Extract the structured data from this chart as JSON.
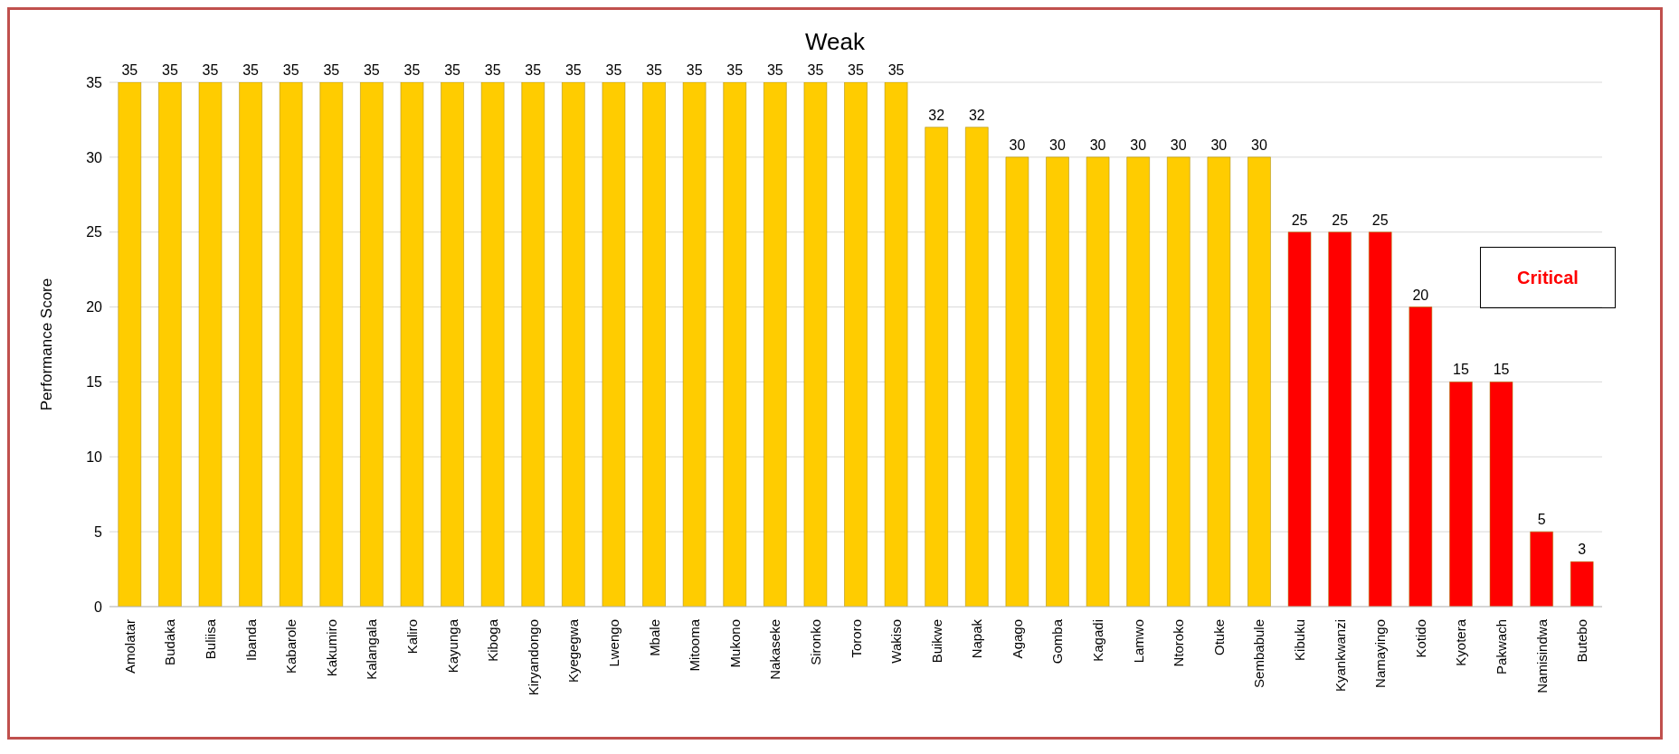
{
  "chart_data": {
    "type": "bar",
    "title": "Weak",
    "ylabel": "Performance Score",
    "categories": [
      "Amolatar",
      "Budaka",
      "Buliisa",
      "Ibanda",
      "Kabarole",
      "Kakumiro",
      "Kalangala",
      "Kaliro",
      "Kayunga",
      "Kiboga",
      "Kiryandongo",
      "Kyegegwa",
      "Lwengo",
      "Mbale",
      "Mitooma",
      "Mukono",
      "Nakaseke",
      "Sironko",
      "Tororo",
      "Wakiso",
      "Buikwe",
      "Napak",
      "Agago",
      "Gomba",
      "Kagadi",
      "Lamwo",
      "Ntoroko",
      "Otuke",
      "Sembabule",
      "Kibuku",
      "Kyankwanzi",
      "Namayingo",
      "Kotido",
      "Kyotera",
      "Pakwach",
      "Namisindwa",
      "Butebo"
    ],
    "values": [
      35,
      35,
      35,
      35,
      35,
      35,
      35,
      35,
      35,
      35,
      35,
      35,
      35,
      35,
      35,
      35,
      35,
      35,
      35,
      35,
      32,
      32,
      30,
      30,
      30,
      30,
      30,
      30,
      30,
      25,
      25,
      25,
      20,
      15,
      15,
      5,
      3
    ],
    "colors": [
      "#ffcc00",
      "#ffcc00",
      "#ffcc00",
      "#ffcc00",
      "#ffcc00",
      "#ffcc00",
      "#ffcc00",
      "#ffcc00",
      "#ffcc00",
      "#ffcc00",
      "#ffcc00",
      "#ffcc00",
      "#ffcc00",
      "#ffcc00",
      "#ffcc00",
      "#ffcc00",
      "#ffcc00",
      "#ffcc00",
      "#ffcc00",
      "#ffcc00",
      "#ffcc00",
      "#ffcc00",
      "#ffcc00",
      "#ffcc00",
      "#ffcc00",
      "#ffcc00",
      "#ffcc00",
      "#ffcc00",
      "#ffcc00",
      "#ff0000",
      "#ff0000",
      "#ff0000",
      "#ff0000",
      "#ff0000",
      "#ff0000",
      "#ff0000",
      "#ff0000"
    ],
    "ylim": [
      0,
      35
    ],
    "yticks": [
      0,
      5,
      10,
      15,
      20,
      25,
      30,
      35
    ],
    "grid": "y",
    "data_labels": true,
    "annotations": [
      "Critical"
    ]
  }
}
